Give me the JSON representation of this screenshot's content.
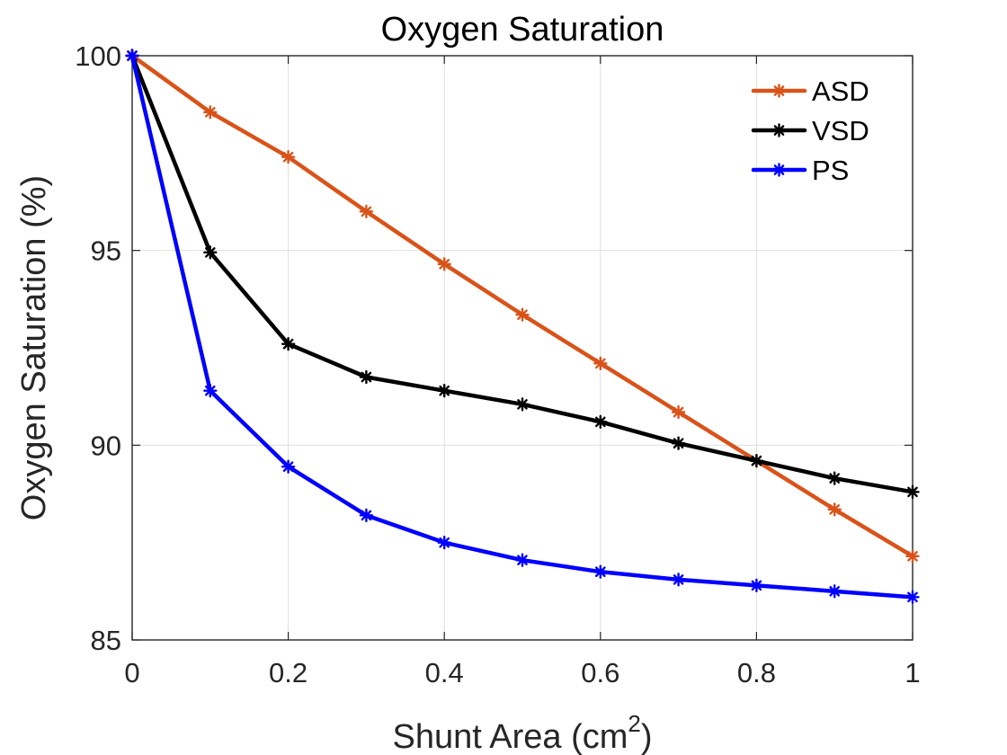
{
  "chart_data": {
    "type": "line",
    "title": "Oxygen Saturation",
    "xlabel": "Shunt Area (cm",
    "xlabel_sup": "2",
    "xlabel_close": ")",
    "ylabel": "Oxygen Saturation (%)",
    "xlim": [
      0,
      1
    ],
    "ylim": [
      85,
      100
    ],
    "x_ticks": [
      0,
      0.2,
      0.4,
      0.6,
      0.8,
      1
    ],
    "x_tick_labels": [
      "0",
      "0.2",
      "0.4",
      "0.6",
      "0.8",
      "1"
    ],
    "y_ticks": [
      85,
      90,
      95,
      100
    ],
    "y_tick_labels": [
      "85",
      "90",
      "95",
      "100"
    ],
    "grid": true,
    "legend_position": "top-right",
    "x": [
      0,
      0.1,
      0.2,
      0.3,
      0.4,
      0.5,
      0.6,
      0.7,
      0.8,
      0.9,
      1.0
    ],
    "series": [
      {
        "name": "ASD",
        "color": "#d95319",
        "marker": "asterisk",
        "values": [
          100,
          98.55,
          97.4,
          96.0,
          94.65,
          93.35,
          92.1,
          90.85,
          89.6,
          88.35,
          87.15
        ]
      },
      {
        "name": "VSD",
        "color": "#000000",
        "marker": "asterisk",
        "values": [
          100,
          94.95,
          92.6,
          91.75,
          91.4,
          91.05,
          90.6,
          90.05,
          89.6,
          89.15,
          88.8
        ]
      },
      {
        "name": "PS",
        "color": "#0000ff",
        "marker": "asterisk",
        "values": [
          100,
          91.4,
          89.45,
          88.2,
          87.5,
          87.05,
          86.75,
          86.55,
          86.4,
          86.25,
          86.1
        ]
      }
    ]
  }
}
